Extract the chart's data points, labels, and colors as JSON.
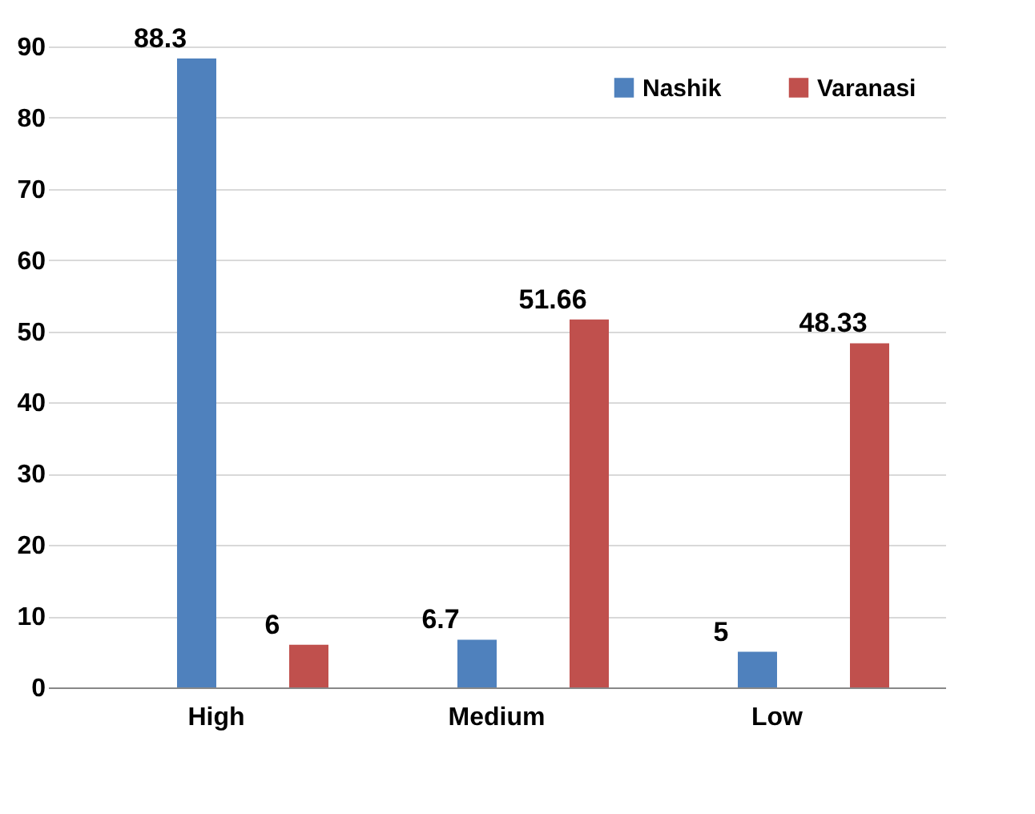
{
  "chart_data": {
    "type": "bar",
    "categories": [
      "High",
      "Medium",
      "Low"
    ],
    "series": [
      {
        "name": "Nashik",
        "color": "#4f81bd",
        "values": [
          88.3,
          6.7,
          5
        ]
      },
      {
        "name": "Varanasi",
        "color": "#c0504d",
        "values": [
          6,
          51.66,
          48.33
        ]
      }
    ],
    "ylim": [
      0,
      90
    ],
    "yticks": [
      0,
      10,
      20,
      30,
      40,
      50,
      60,
      70,
      80,
      90
    ],
    "grid": "y",
    "legend": "top right",
    "data_labels": true
  }
}
